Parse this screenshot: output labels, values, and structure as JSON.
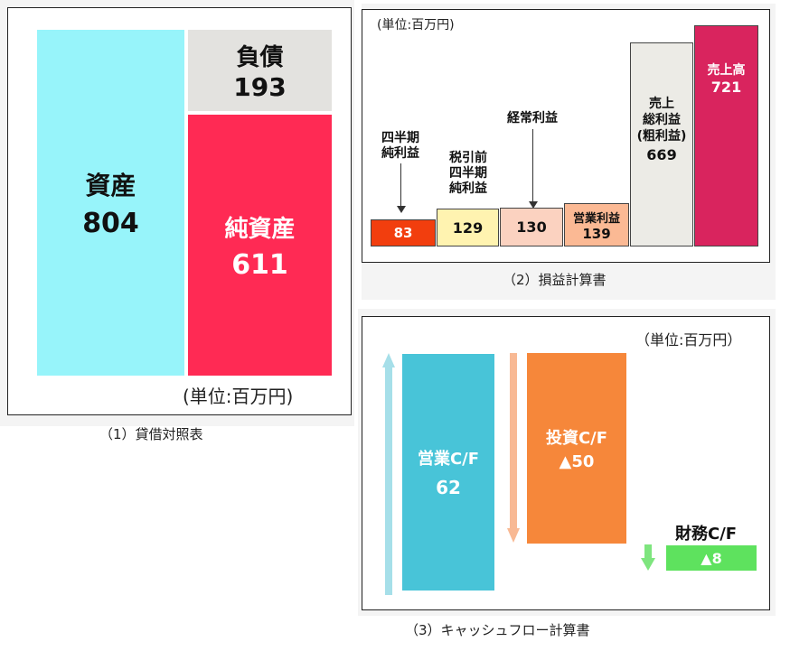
{
  "balance_sheet": {
    "caption": "（1）貸借対照表",
    "unit": "(単位:百万円)",
    "assets": {
      "label": "資産",
      "value": "804",
      "color": "#97f4fa"
    },
    "liabilities": {
      "label": "負債",
      "value": "193",
      "color": "#e3e2df"
    },
    "net_assets": {
      "label": "純資産",
      "value": "611",
      "color": "#ff2a54"
    }
  },
  "income_statement": {
    "caption": "（2）損益計算書",
    "unit": "(単位:百万円)",
    "items": [
      {
        "label": "四半期\n純利益",
        "value": "83",
        "color": "#f23e0e"
      },
      {
        "label": "税引前\n四半期\n純利益",
        "value": "129",
        "color": "#fff3b0"
      },
      {
        "label": "経常利益",
        "value": "130",
        "color": "#fbd2c0"
      },
      {
        "label": "営業利益",
        "value": "139",
        "color": "#fbb994"
      },
      {
        "label": "売上\n総利益\n(粗利益)",
        "value": "669",
        "color": "#ecebe6"
      },
      {
        "label": "売上高",
        "value": "721",
        "color": "#d9245e"
      }
    ]
  },
  "cash_flow": {
    "caption": "（3）キャッシュフロー計算書",
    "unit": "（単位:百万円）",
    "operating": {
      "label": "営業C/F",
      "value": "62",
      "color": "#48c4d8"
    },
    "investing": {
      "label": "投資C/F",
      "value": "▲50",
      "color": "#f6873a"
    },
    "financing": {
      "label": "財務C/F",
      "value": "▲8",
      "color": "#5ee25e"
    }
  }
}
